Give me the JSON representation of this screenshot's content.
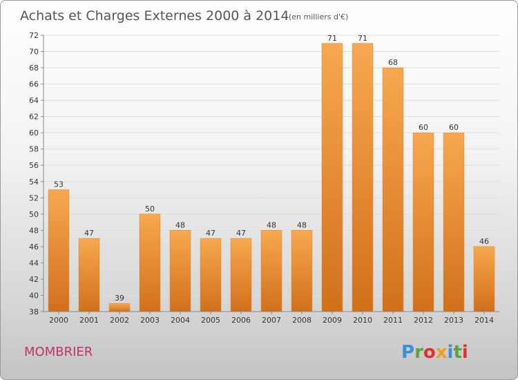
{
  "header": {
    "title": "Achats et Charges Externes 2000 à 2014",
    "unit": "(en milliers d'€)"
  },
  "footer": {
    "town": "MOMBRIER",
    "brand": {
      "letters": [
        "P",
        "r",
        "o",
        "x",
        "i",
        "t",
        "i"
      ],
      "colors": [
        "#3a8fd8",
        "#5aa63a",
        "#e0312f",
        "#f0a020",
        "#3a8fd8",
        "#5aa63a",
        "#e0312f"
      ]
    }
  },
  "colors": {
    "bar_top": "#f7a850",
    "bar_bottom": "#d2701a",
    "bar_stroke": "#e07f24",
    "grid": "#dddddd",
    "axis": "#888888",
    "text": "#555555",
    "town": "#c0306a"
  },
  "chart_data": {
    "type": "bar",
    "title": "Achats et Charges Externes 2000 à 2014",
    "subtitle": "(en milliers d'€)",
    "xlabel": "",
    "ylabel": "",
    "categories": [
      "2000",
      "2001",
      "2002",
      "2003",
      "2004",
      "2005",
      "2006",
      "2007",
      "2008",
      "2009",
      "2010",
      "2011",
      "2012",
      "2013",
      "2014"
    ],
    "values": [
      53,
      47,
      39,
      50,
      48,
      47,
      47,
      48,
      48,
      71,
      71,
      68,
      60,
      60,
      46
    ],
    "ylim": [
      38,
      72
    ],
    "yticks": [
      38,
      40,
      42,
      44,
      46,
      48,
      50,
      52,
      54,
      56,
      58,
      60,
      62,
      64,
      66,
      68,
      70,
      72
    ],
    "grid": true,
    "legend": "none"
  }
}
